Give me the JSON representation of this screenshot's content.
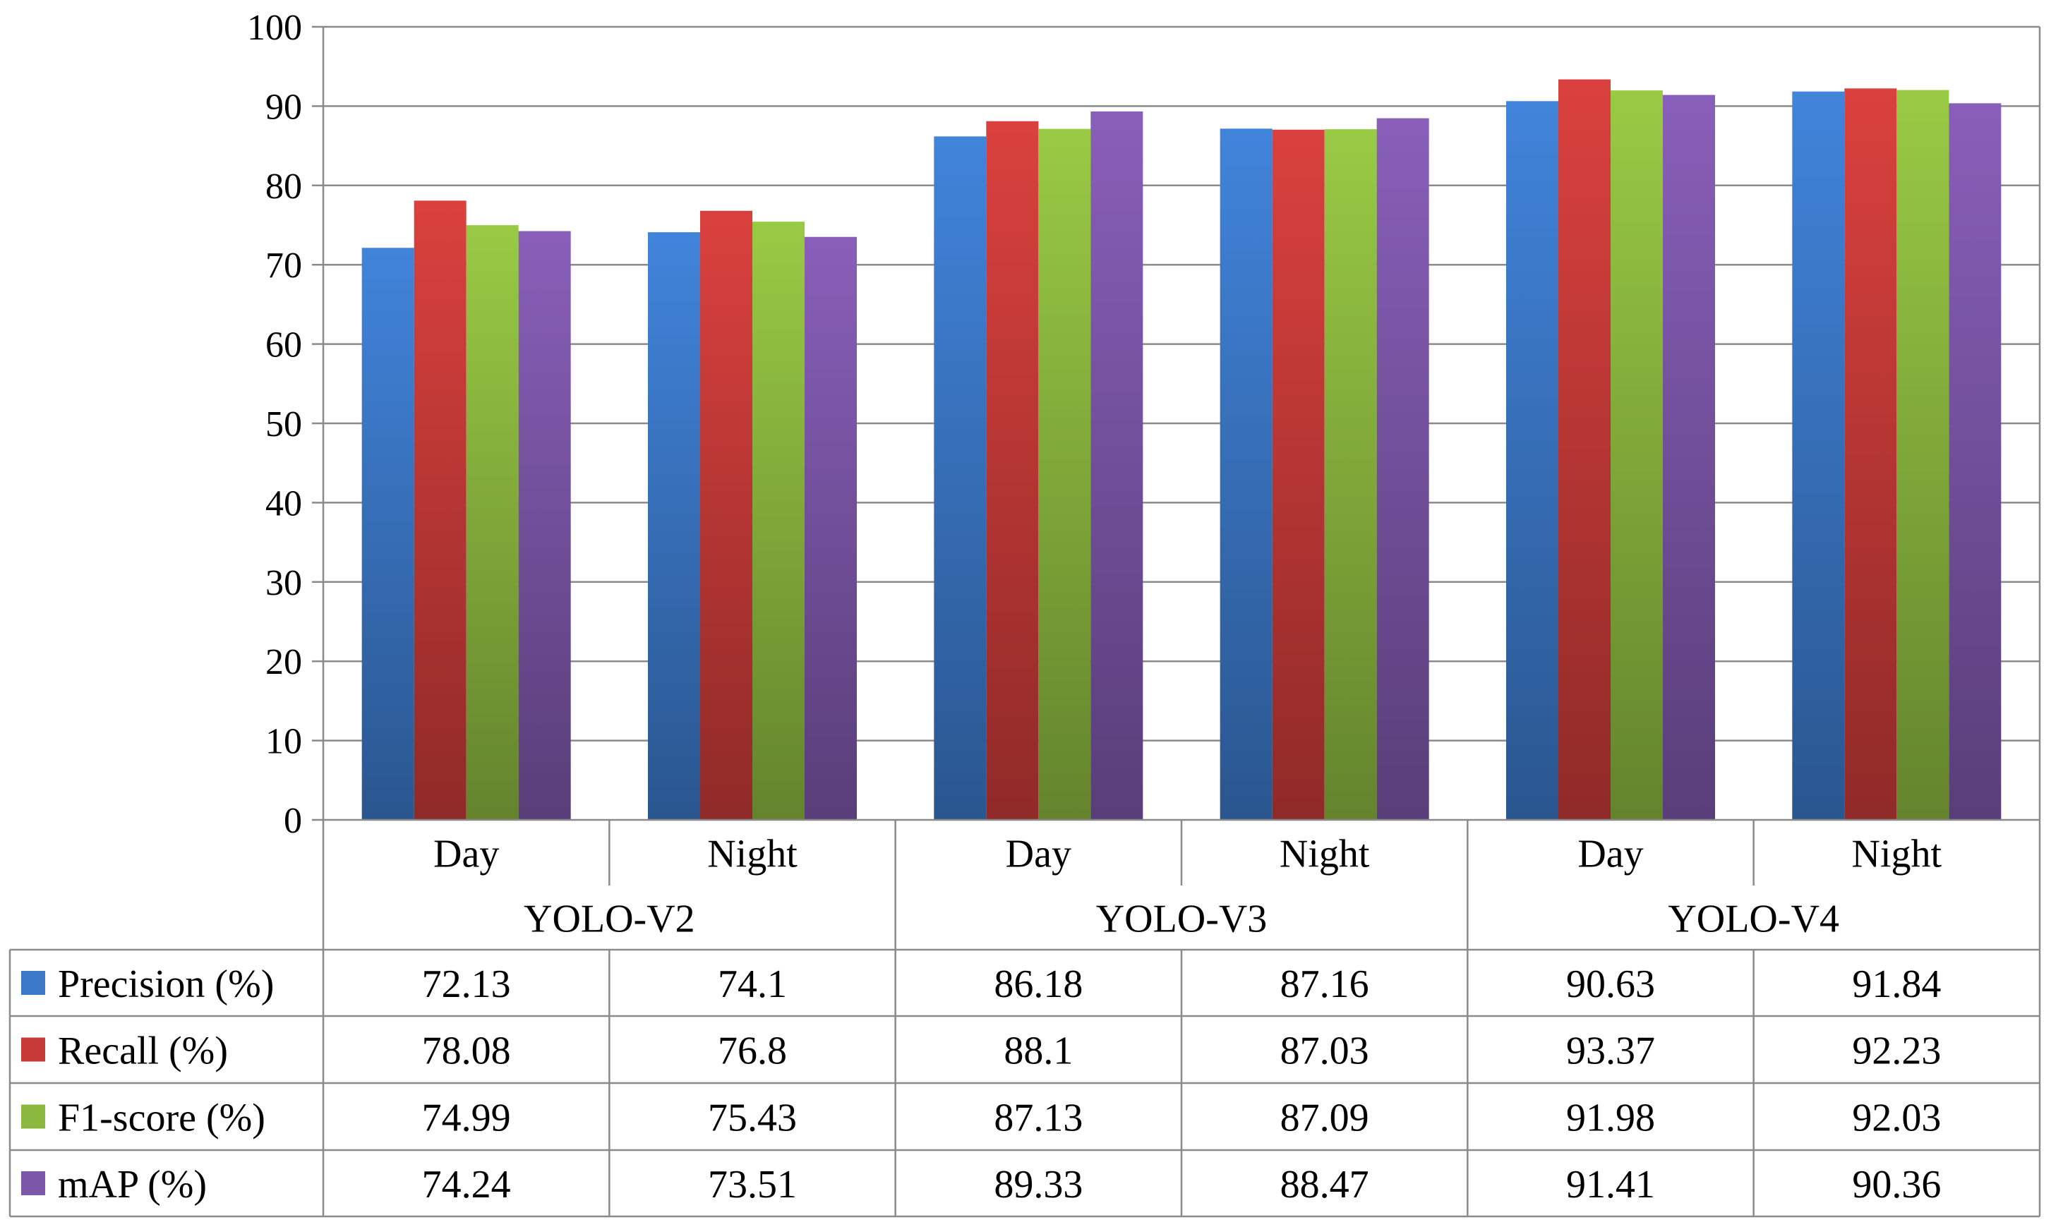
{
  "chart_data": {
    "type": "bar",
    "title": "",
    "xlabel": "",
    "ylabel": "",
    "ylim": [
      0,
      100
    ],
    "y_ticks": [
      "0",
      "10",
      "20",
      "30",
      "40",
      "50",
      "60",
      "70",
      "80",
      "90",
      "100"
    ],
    "grid": true,
    "legend_placement": "table-left",
    "groups": [
      {
        "name": "YOLO-V2",
        "conditions": [
          "Day",
          "Night"
        ]
      },
      {
        "name": "YOLO-V3",
        "conditions": [
          "Day",
          "Night"
        ]
      },
      {
        "name": "YOLO-V4",
        "conditions": [
          "Day",
          "Night"
        ]
      }
    ],
    "categories": [
      "Day",
      "Night",
      "Day",
      "Night",
      "Day",
      "Night"
    ],
    "series": [
      {
        "name": "Precision (%)",
        "color": "#3b78c7",
        "values": [
          72.13,
          74.1,
          86.18,
          87.16,
          90.63,
          91.84
        ],
        "labels": [
          "72.13",
          "74.1",
          "86.18",
          "87.16",
          "90.63",
          "91.84"
        ]
      },
      {
        "name": "Recall (%)",
        "color": "#c63b38",
        "values": [
          78.08,
          76.8,
          88.1,
          87.03,
          93.37,
          92.23
        ],
        "labels": [
          "78.08",
          "76.8",
          "88.1",
          "87.03",
          "93.37",
          "92.23"
        ]
      },
      {
        "name": "F1-score (%)",
        "color": "#8bb83e",
        "values": [
          74.99,
          75.43,
          87.13,
          87.09,
          91.98,
          92.03
        ],
        "labels": [
          "74.99",
          "75.43",
          "87.13",
          "87.09",
          "91.98",
          "92.03"
        ]
      },
      {
        "name": "mAP (%)",
        "color": "#7c56a8",
        "values": [
          74.24,
          73.51,
          89.33,
          88.47,
          91.41,
          90.36
        ],
        "labels": [
          "74.24",
          "73.51",
          "89.33",
          "88.47",
          "91.41",
          "90.36"
        ]
      }
    ]
  }
}
